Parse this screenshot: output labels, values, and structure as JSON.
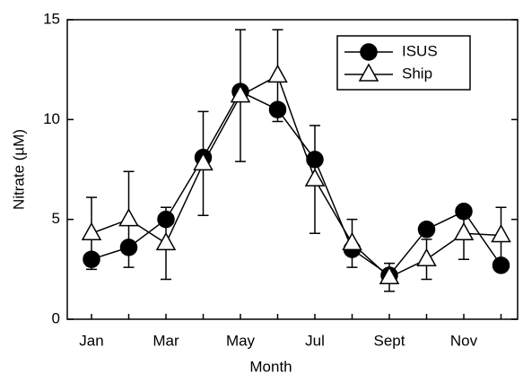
{
  "chart_data": {
    "type": "line",
    "x_label": "Month",
    "y_label": "Nitrate (µM)",
    "categories": [
      "Jan",
      null,
      "Mar",
      null,
      "May",
      null,
      "Jul",
      null,
      "Sept",
      null,
      "Nov",
      null
    ],
    "series": [
      {
        "name": "ISUS",
        "color": "#000000",
        "marker": "circle",
        "values": [
          3.0,
          3.6,
          5.0,
          8.1,
          11.4,
          10.5,
          8.0,
          3.5,
          2.2,
          4.5,
          5.4,
          2.7
        ]
      },
      {
        "name": "Ship",
        "color": "#ffffff",
        "marker": "triangle",
        "values": [
          4.3,
          5.0,
          3.8,
          7.8,
          11.2,
          12.2,
          7.0,
          3.8,
          2.1,
          3.0,
          4.3,
          4.2
        ],
        "errors": [
          1.8,
          2.4,
          1.8,
          2.6,
          3.3,
          2.3,
          2.7,
          1.2,
          0.7,
          1.0,
          1.3,
          1.4
        ]
      }
    ],
    "ylim": [
      0,
      15
    ],
    "yticks": [
      0,
      5,
      10,
      15
    ],
    "grid": false,
    "legend": "upper right"
  }
}
